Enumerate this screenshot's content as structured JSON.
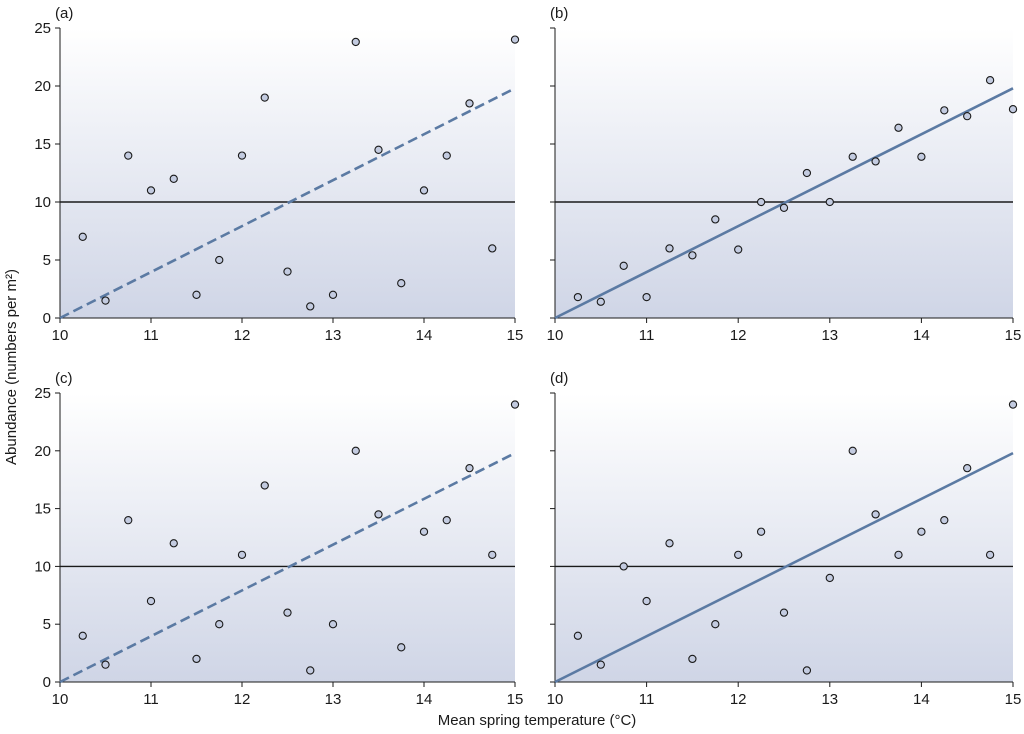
{
  "figure": {
    "ylabel": "Abundance (numbers per m²)",
    "xlabel": "Mean spring temperature (°C)",
    "colors": {
      "fit_line": "#5b7aa3",
      "reference_line": "#1a1a1a",
      "marker_fill": "#c3cbe0",
      "marker_edge": "#1a1a1a",
      "background_top": "#ffffff",
      "background_bottom": "#cfd5e6"
    }
  },
  "chart_data": [
    {
      "type": "scatter",
      "panel_label": "(a)",
      "xlim": [
        10,
        15
      ],
      "ylim": [
        0,
        25
      ],
      "xticks": [
        10,
        11,
        12,
        13,
        14,
        15
      ],
      "yticks": [
        0,
        5,
        10,
        15,
        20,
        25
      ],
      "reference_line_y": 10,
      "fit_line": {
        "style": "dashed",
        "x": [
          10,
          15
        ],
        "y": [
          0,
          19.8
        ]
      },
      "points": [
        {
          "x": 10.25,
          "y": 7
        },
        {
          "x": 10.5,
          "y": 1.5
        },
        {
          "x": 10.75,
          "y": 14
        },
        {
          "x": 11.0,
          "y": 11
        },
        {
          "x": 11.25,
          "y": 12
        },
        {
          "x": 11.5,
          "y": 2
        },
        {
          "x": 11.75,
          "y": 5
        },
        {
          "x": 12.0,
          "y": 14
        },
        {
          "x": 12.25,
          "y": 19
        },
        {
          "x": 12.5,
          "y": 4
        },
        {
          "x": 12.75,
          "y": 1
        },
        {
          "x": 13.0,
          "y": 2
        },
        {
          "x": 13.25,
          "y": 23.8
        },
        {
          "x": 13.5,
          "y": 14.5
        },
        {
          "x": 13.75,
          "y": 3
        },
        {
          "x": 14.0,
          "y": 11
        },
        {
          "x": 14.25,
          "y": 14
        },
        {
          "x": 14.5,
          "y": 18.5
        },
        {
          "x": 14.75,
          "y": 6
        },
        {
          "x": 15.0,
          "y": 24
        }
      ]
    },
    {
      "type": "scatter",
      "panel_label": "(b)",
      "xlim": [
        10,
        15
      ],
      "ylim": [
        0,
        25
      ],
      "xticks": [
        10,
        11,
        12,
        13,
        14,
        15
      ],
      "yticks": [
        0,
        5,
        10,
        15,
        20,
        25
      ],
      "reference_line_y": 10,
      "fit_line": {
        "style": "solid",
        "x": [
          10,
          15
        ],
        "y": [
          0,
          19.8
        ]
      },
      "points": [
        {
          "x": 10.25,
          "y": 1.8
        },
        {
          "x": 10.5,
          "y": 1.4
        },
        {
          "x": 10.75,
          "y": 4.5
        },
        {
          "x": 11.0,
          "y": 1.8
        },
        {
          "x": 11.25,
          "y": 6
        },
        {
          "x": 11.5,
          "y": 5.4
        },
        {
          "x": 11.75,
          "y": 8.5
        },
        {
          "x": 12.0,
          "y": 5.9
        },
        {
          "x": 12.25,
          "y": 10
        },
        {
          "x": 12.5,
          "y": 9.5
        },
        {
          "x": 12.75,
          "y": 12.5
        },
        {
          "x": 13.0,
          "y": 10
        },
        {
          "x": 13.25,
          "y": 13.9
        },
        {
          "x": 13.5,
          "y": 13.5
        },
        {
          "x": 13.75,
          "y": 16.4
        },
        {
          "x": 14.0,
          "y": 13.9
        },
        {
          "x": 14.25,
          "y": 17.9
        },
        {
          "x": 14.5,
          "y": 17.4
        },
        {
          "x": 14.75,
          "y": 20.5
        },
        {
          "x": 15.0,
          "y": 18
        }
      ]
    },
    {
      "type": "scatter",
      "panel_label": "(c)",
      "xlim": [
        10,
        15
      ],
      "ylim": [
        0,
        25
      ],
      "xticks": [
        10,
        11,
        12,
        13,
        14,
        15
      ],
      "yticks": [
        0,
        5,
        10,
        15,
        20,
        25
      ],
      "reference_line_y": 10,
      "fit_line": {
        "style": "dashed",
        "x": [
          10,
          15
        ],
        "y": [
          0,
          19.8
        ]
      },
      "points": [
        {
          "x": 10.25,
          "y": 4
        },
        {
          "x": 10.5,
          "y": 1.5
        },
        {
          "x": 10.75,
          "y": 14
        },
        {
          "x": 11.0,
          "y": 7
        },
        {
          "x": 11.25,
          "y": 12
        },
        {
          "x": 11.5,
          "y": 2
        },
        {
          "x": 11.75,
          "y": 5
        },
        {
          "x": 12.0,
          "y": 11
        },
        {
          "x": 12.25,
          "y": 17
        },
        {
          "x": 12.5,
          "y": 6
        },
        {
          "x": 12.75,
          "y": 1
        },
        {
          "x": 13.0,
          "y": 5
        },
        {
          "x": 13.25,
          "y": 20
        },
        {
          "x": 13.5,
          "y": 14.5
        },
        {
          "x": 13.75,
          "y": 3
        },
        {
          "x": 14.0,
          "y": 13
        },
        {
          "x": 14.25,
          "y": 14
        },
        {
          "x": 14.5,
          "y": 18.5
        },
        {
          "x": 14.75,
          "y": 11
        },
        {
          "x": 15.0,
          "y": 24
        }
      ]
    },
    {
      "type": "scatter",
      "panel_label": "(d)",
      "xlim": [
        10,
        15
      ],
      "ylim": [
        0,
        25
      ],
      "xticks": [
        10,
        11,
        12,
        13,
        14,
        15
      ],
      "yticks": [
        0,
        5,
        10,
        15,
        20,
        25
      ],
      "reference_line_y": 10,
      "fit_line": {
        "style": "solid",
        "x": [
          10,
          15
        ],
        "y": [
          0,
          19.8
        ]
      },
      "points": [
        {
          "x": 10.25,
          "y": 4
        },
        {
          "x": 10.5,
          "y": 1.5
        },
        {
          "x": 10.75,
          "y": 10
        },
        {
          "x": 11.0,
          "y": 7
        },
        {
          "x": 11.25,
          "y": 12
        },
        {
          "x": 11.5,
          "y": 2
        },
        {
          "x": 11.75,
          "y": 5
        },
        {
          "x": 12.0,
          "y": 11
        },
        {
          "x": 12.25,
          "y": 13
        },
        {
          "x": 12.5,
          "y": 6
        },
        {
          "x": 12.75,
          "y": 1
        },
        {
          "x": 13.0,
          "y": 9
        },
        {
          "x": 13.25,
          "y": 20
        },
        {
          "x": 13.5,
          "y": 14.5
        },
        {
          "x": 13.75,
          "y": 11
        },
        {
          "x": 14.0,
          "y": 13
        },
        {
          "x": 14.25,
          "y": 14
        },
        {
          "x": 14.5,
          "y": 18.5
        },
        {
          "x": 14.75,
          "y": 11
        },
        {
          "x": 15.0,
          "y": 24
        }
      ]
    }
  ]
}
